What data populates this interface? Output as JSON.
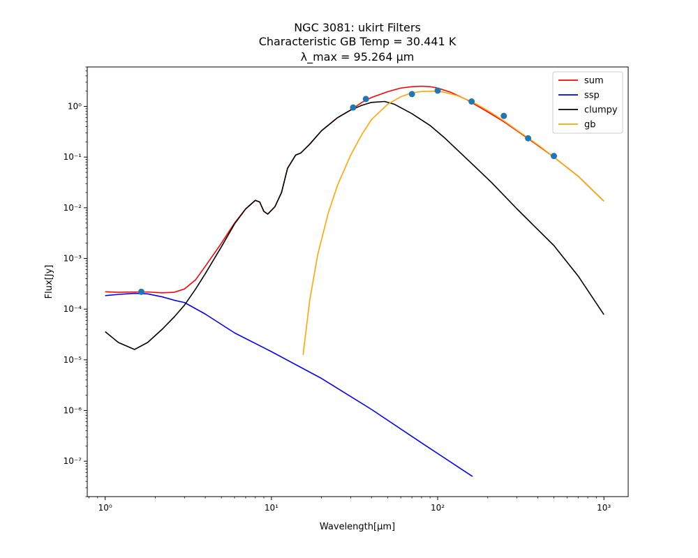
{
  "chart_data": {
    "type": "line",
    "title_lines": [
      "NGC 3081: ukirt Filters",
      "Characteristic GB Temp = 30.441 K",
      "λ_max = 95.264 μm"
    ],
    "xlabel": "Wavelength[μm]",
    "ylabel": "Flux[Jy]",
    "xscale": "log",
    "yscale": "log",
    "xlim": [
      0.78,
      1400
    ],
    "ylim": [
      2e-08,
      6.0
    ],
    "x_ticks": [
      {
        "value": 1,
        "label": "10⁰"
      },
      {
        "value": 10,
        "label": "10¹"
      },
      {
        "value": 100,
        "label": "10²"
      },
      {
        "value": 1000,
        "label": "10³"
      }
    ],
    "y_ticks": [
      {
        "value": 1e-07,
        "label": "10⁻⁷"
      },
      {
        "value": 1e-06,
        "label": "10⁻⁶"
      },
      {
        "value": 1e-05,
        "label": "10⁻⁵"
      },
      {
        "value": 0.0001,
        "label": "10⁻⁴"
      },
      {
        "value": 0.001,
        "label": "10⁻³"
      },
      {
        "value": 0.01,
        "label": "10⁻²"
      },
      {
        "value": 0.1,
        "label": "10⁻¹"
      },
      {
        "value": 1,
        "label": "10⁰"
      }
    ],
    "legend_position": "top-right",
    "grid": false,
    "series": [
      {
        "name": "sum",
        "color": "#ff0000",
        "points": [
          [
            1.0,
            0.00022
          ],
          [
            1.2,
            0.000215
          ],
          [
            1.5,
            0.000218
          ],
          [
            1.8,
            0.000218
          ],
          [
            2.2,
            0.00021
          ],
          [
            2.6,
            0.000215
          ],
          [
            3.0,
            0.00025
          ],
          [
            3.5,
            0.00038
          ],
          [
            4.0,
            0.0007
          ],
          [
            5.0,
            0.002
          ],
          [
            6.0,
            0.005
          ],
          [
            7.0,
            0.0095
          ],
          [
            8.0,
            0.014
          ],
          [
            8.5,
            0.013
          ],
          [
            9.0,
            0.0085
          ],
          [
            9.5,
            0.0075
          ],
          [
            10.5,
            0.0105
          ],
          [
            11.5,
            0.02
          ],
          [
            12.5,
            0.06
          ],
          [
            14.0,
            0.11
          ],
          [
            15.0,
            0.12
          ],
          [
            17.0,
            0.18
          ],
          [
            20.0,
            0.33
          ],
          [
            25.0,
            0.6
          ],
          [
            30.0,
            0.85
          ],
          [
            35.0,
            1.2
          ],
          [
            40.0,
            1.5
          ],
          [
            50.0,
            1.95
          ],
          [
            60.0,
            2.3
          ],
          [
            70.0,
            2.45
          ],
          [
            80.0,
            2.5
          ],
          [
            90.0,
            2.45
          ],
          [
            100.0,
            2.3
          ],
          [
            120.0,
            1.9
          ],
          [
            150.0,
            1.35
          ],
          [
            200.0,
            0.78
          ],
          [
            250.0,
            0.5
          ],
          [
            300.0,
            0.33
          ],
          [
            400.0,
            0.17
          ],
          [
            500.0,
            0.1
          ],
          [
            700.0,
            0.042
          ],
          [
            1000.0,
            0.0135
          ]
        ]
      },
      {
        "name": "ssp",
        "color": "#0000ff",
        "points": [
          [
            1.0,
            0.000185
          ],
          [
            1.2,
            0.000195
          ],
          [
            1.5,
            0.000205
          ],
          [
            1.8,
            0.0002
          ],
          [
            2.2,
            0.000175
          ],
          [
            2.6,
            0.00015
          ],
          [
            3.0,
            0.000135
          ],
          [
            4.0,
            8e-05
          ],
          [
            6.0,
            3.4e-05
          ],
          [
            10.0,
            1.45e-05
          ],
          [
            20.0,
            4.3e-06
          ],
          [
            40.0,
            1.05e-06
          ],
          [
            80.0,
            2.3e-07
          ],
          [
            162.0,
            5e-08
          ]
        ]
      },
      {
        "name": "clumpy",
        "color": "#000000",
        "points": [
          [
            1.0,
            3.6e-05
          ],
          [
            1.2,
            2.2e-05
          ],
          [
            1.5,
            1.6e-05
          ],
          [
            1.8,
            2.2e-05
          ],
          [
            2.2,
            4e-05
          ],
          [
            2.6,
            7e-05
          ],
          [
            3.0,
            0.00012
          ],
          [
            3.5,
            0.00025
          ],
          [
            4.0,
            0.0005
          ],
          [
            5.0,
            0.0017
          ],
          [
            6.0,
            0.0048
          ],
          [
            7.0,
            0.0095
          ],
          [
            8.0,
            0.014
          ],
          [
            8.5,
            0.013
          ],
          [
            9.0,
            0.0085
          ],
          [
            9.5,
            0.0075
          ],
          [
            10.5,
            0.0105
          ],
          [
            11.5,
            0.02
          ],
          [
            12.5,
            0.06
          ],
          [
            14.0,
            0.11
          ],
          [
            15.0,
            0.12
          ],
          [
            17.0,
            0.18
          ],
          [
            20.0,
            0.33
          ],
          [
            25.0,
            0.6
          ],
          [
            30.0,
            0.85
          ],
          [
            35.0,
            1.05
          ],
          [
            40.0,
            1.2
          ],
          [
            48.0,
            1.25
          ],
          [
            55.0,
            1.1
          ],
          [
            70.0,
            0.72
          ],
          [
            90.0,
            0.42
          ],
          [
            110.0,
            0.24
          ],
          [
            160.0,
            0.075
          ],
          [
            210.0,
            0.032
          ],
          [
            300.0,
            0.0095
          ],
          [
            500.0,
            0.0018
          ],
          [
            700.0,
            0.00045
          ],
          [
            1000.0,
            7.8e-05
          ]
        ]
      },
      {
        "name": "gb",
        "color": "#ffa500",
        "points": [
          [
            15.5,
            1.25e-05
          ],
          [
            17.0,
            0.00015
          ],
          [
            19.0,
            0.0012
          ],
          [
            22.0,
            0.008
          ],
          [
            25.0,
            0.028
          ],
          [
            30.0,
            0.11
          ],
          [
            35.0,
            0.28
          ],
          [
            40.0,
            0.55
          ],
          [
            50.0,
            1.1
          ],
          [
            60.0,
            1.55
          ],
          [
            70.0,
            1.85
          ],
          [
            80.0,
            1.97
          ],
          [
            95.0,
            2.0
          ],
          [
            110.0,
            1.9
          ],
          [
            130.0,
            1.65
          ],
          [
            160.0,
            1.25
          ],
          [
            200.0,
            0.83
          ],
          [
            250.0,
            0.52
          ],
          [
            300.0,
            0.34
          ],
          [
            400.0,
            0.175
          ],
          [
            500.0,
            0.1
          ],
          [
            700.0,
            0.042
          ],
          [
            1000.0,
            0.0135
          ]
        ]
      }
    ],
    "scatter": {
      "color": "#1f77b4",
      "points": [
        [
          1.65,
          0.00022
        ],
        [
          31.0,
          0.95
        ],
        [
          37.0,
          1.4
        ],
        [
          70.0,
          1.75
        ],
        [
          100.0,
          2.05
        ],
        [
          160.0,
          1.25
        ],
        [
          250.0,
          0.65
        ],
        [
          350.0,
          0.235
        ],
        [
          500.0,
          0.105
        ]
      ]
    }
  }
}
